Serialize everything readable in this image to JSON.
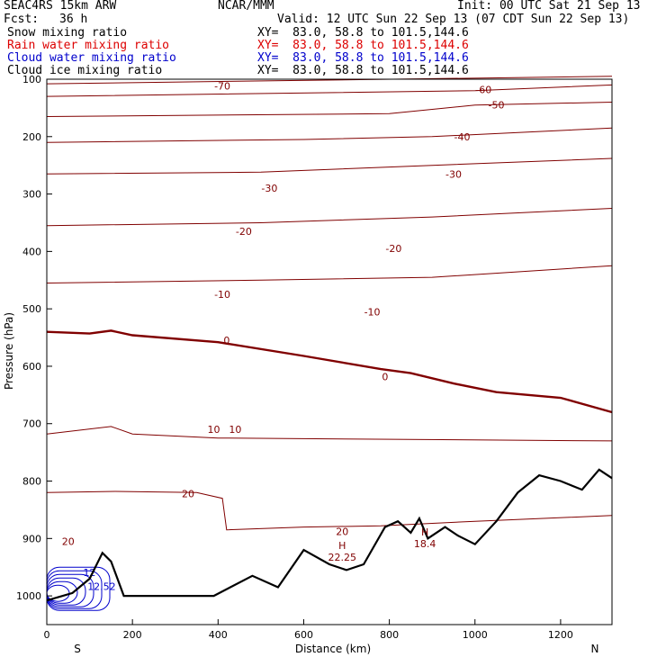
{
  "header": {
    "model": "SEAC4RS 15km ARW",
    "org": "NCAR/MMM",
    "init": "Init: 00 UTC Sat 21 Sep 13",
    "fcst_label": "Fcst:",
    "fcst_value": "36 h",
    "valid": "Valid: 12 UTC Sun 22 Sep 13 (07 CDT Sun 22 Sep 13)"
  },
  "legend": [
    {
      "name": "Snow mixing ratio",
      "xy": "XY=  83.0, 58.8 to 101.5,144.6",
      "color": "#000000"
    },
    {
      "name": "Rain water mixing ratio",
      "xy": "XY=  83.0, 58.8 to 101.5,144.6",
      "color": "#dd0000"
    },
    {
      "name": "Cloud water mixing ratio",
      "xy": "XY=  83.0, 58.8 to 101.5,144.6",
      "color": "#0000cc"
    },
    {
      "name": "Cloud ice mixing ratio",
      "xy": "XY=  83.0, 58.8 to 101.5,144.6",
      "color": "#000000"
    }
  ],
  "chart_data": {
    "type": "line",
    "xlabel": "Distance (km)",
    "ylabel": "Pressure (hPa)",
    "xlim": [
      0,
      1320
    ],
    "ylim": [
      1050,
      100
    ],
    "x_ticks": [
      0,
      200,
      400,
      600,
      800,
      1000,
      1200
    ],
    "y_ticks": [
      100,
      200,
      300,
      400,
      500,
      600,
      700,
      800,
      900,
      1000
    ],
    "x_end_labels": {
      "left": "S",
      "right": "N"
    },
    "colors": {
      "isotherm": "#800000",
      "terrain": "#000000",
      "cloud": "#0000cc",
      "hilo": "#800000"
    },
    "freezing_level": [
      {
        "x": 0,
        "y": 540
      },
      {
        "x": 100,
        "y": 543
      },
      {
        "x": 150,
        "y": 538
      },
      {
        "x": 200,
        "y": 546
      },
      {
        "x": 400,
        "y": 558
      },
      {
        "x": 600,
        "y": 582
      },
      {
        "x": 780,
        "y": 605
      },
      {
        "x": 850,
        "y": 612
      },
      {
        "x": 950,
        "y": 630
      },
      {
        "x": 1050,
        "y": 645
      },
      {
        "x": 1200,
        "y": 655
      },
      {
        "x": 1320,
        "y": 680
      }
    ],
    "isotherms": [
      {
        "label": "-70",
        "points": [
          {
            "x": 0,
            "y": 108
          },
          {
            "x": 1320,
            "y": 95
          }
        ],
        "labels_at": [
          {
            "x": 410,
            "y": 112
          }
        ]
      },
      {
        "label": "-60",
        "points": [
          {
            "x": 0,
            "y": 130
          },
          {
            "x": 1000,
            "y": 120
          },
          {
            "x": 1320,
            "y": 110
          }
        ],
        "labels_at": [
          {
            "x": 1020,
            "y": 118
          }
        ]
      },
      {
        "label": "-50",
        "points": [
          {
            "x": 0,
            "y": 165
          },
          {
            "x": 800,
            "y": 160
          },
          {
            "x": 1000,
            "y": 145
          },
          {
            "x": 1320,
            "y": 140
          }
        ],
        "labels_at": [
          {
            "x": 1050,
            "y": 145
          }
        ]
      },
      {
        "label": "-40",
        "points": [
          {
            "x": 0,
            "y": 210
          },
          {
            "x": 600,
            "y": 205
          },
          {
            "x": 900,
            "y": 200
          },
          {
            "x": 1320,
            "y": 185
          }
        ],
        "labels_at": [
          {
            "x": 970,
            "y": 200
          }
        ]
      },
      {
        "label": "-30",
        "points": [
          {
            "x": 0,
            "y": 265
          },
          {
            "x": 500,
            "y": 262
          },
          {
            "x": 900,
            "y": 250
          },
          {
            "x": 1320,
            "y": 238
          }
        ],
        "labels_at": [
          {
            "x": 520,
            "y": 290
          },
          {
            "x": 950,
            "y": 265
          }
        ]
      },
      {
        "label": "-20",
        "points": [
          {
            "x": 0,
            "y": 355
          },
          {
            "x": 500,
            "y": 350
          },
          {
            "x": 900,
            "y": 340
          },
          {
            "x": 1320,
            "y": 325
          }
        ],
        "labels_at": [
          {
            "x": 460,
            "y": 365
          },
          {
            "x": 810,
            "y": 395
          }
        ]
      },
      {
        "label": "-10",
        "points": [
          {
            "x": 0,
            "y": 455
          },
          {
            "x": 500,
            "y": 450
          },
          {
            "x": 900,
            "y": 445
          },
          {
            "x": 1320,
            "y": 425
          }
        ],
        "labels_at": [
          {
            "x": 410,
            "y": 475
          },
          {
            "x": 760,
            "y": 505
          }
        ]
      },
      {
        "label": "10",
        "points": [
          {
            "x": 0,
            "y": 718
          },
          {
            "x": 150,
            "y": 705
          },
          {
            "x": 200,
            "y": 718
          },
          {
            "x": 400,
            "y": 725
          },
          {
            "x": 1320,
            "y": 730
          }
        ],
        "labels_at": [
          {
            "x": 390,
            "y": 710
          },
          {
            "x": 440,
            "y": 710
          }
        ]
      },
      {
        "label": "20",
        "points": [
          {
            "x": 0,
            "y": 820
          },
          {
            "x": 160,
            "y": 818
          },
          {
            "x": 350,
            "y": 820
          },
          {
            "x": 410,
            "y": 830
          },
          {
            "x": 420,
            "y": 885
          },
          {
            "x": 600,
            "y": 880
          },
          {
            "x": 780,
            "y": 878
          },
          {
            "x": 1000,
            "y": 870
          },
          {
            "x": 1320,
            "y": 860
          }
        ],
        "labels_at": [
          {
            "x": 330,
            "y": 822
          },
          {
            "x": 690,
            "y": 888
          },
          {
            "x": 50,
            "y": 905
          }
        ]
      }
    ],
    "terrain": [
      {
        "x": 0,
        "y": 1008
      },
      {
        "x": 60,
        "y": 995
      },
      {
        "x": 100,
        "y": 970
      },
      {
        "x": 130,
        "y": 925
      },
      {
        "x": 150,
        "y": 940
      },
      {
        "x": 180,
        "y": 1000
      },
      {
        "x": 390,
        "y": 1000
      },
      {
        "x": 480,
        "y": 965
      },
      {
        "x": 540,
        "y": 985
      },
      {
        "x": 600,
        "y": 920
      },
      {
        "x": 660,
        "y": 945
      },
      {
        "x": 700,
        "y": 955
      },
      {
        "x": 740,
        "y": 945
      },
      {
        "x": 790,
        "y": 880
      },
      {
        "x": 820,
        "y": 870
      },
      {
        "x": 850,
        "y": 890
      },
      {
        "x": 870,
        "y": 865
      },
      {
        "x": 890,
        "y": 900
      },
      {
        "x": 930,
        "y": 880
      },
      {
        "x": 960,
        "y": 895
      },
      {
        "x": 1000,
        "y": 910
      },
      {
        "x": 1050,
        "y": 870
      },
      {
        "x": 1100,
        "y": 820
      },
      {
        "x": 1150,
        "y": 790
      },
      {
        "x": 1200,
        "y": 800
      },
      {
        "x": 1250,
        "y": 815
      },
      {
        "x": 1290,
        "y": 780
      },
      {
        "x": 1320,
        "y": 795
      }
    ],
    "cloud_values": [
      "12",
      "12.52"
    ],
    "hilo": [
      {
        "letter": "H",
        "value": "22.25",
        "x": 690,
        "y": 918
      },
      {
        "letter": "H",
        "value": "18.4",
        "x": 883,
        "y": 895
      }
    ]
  }
}
